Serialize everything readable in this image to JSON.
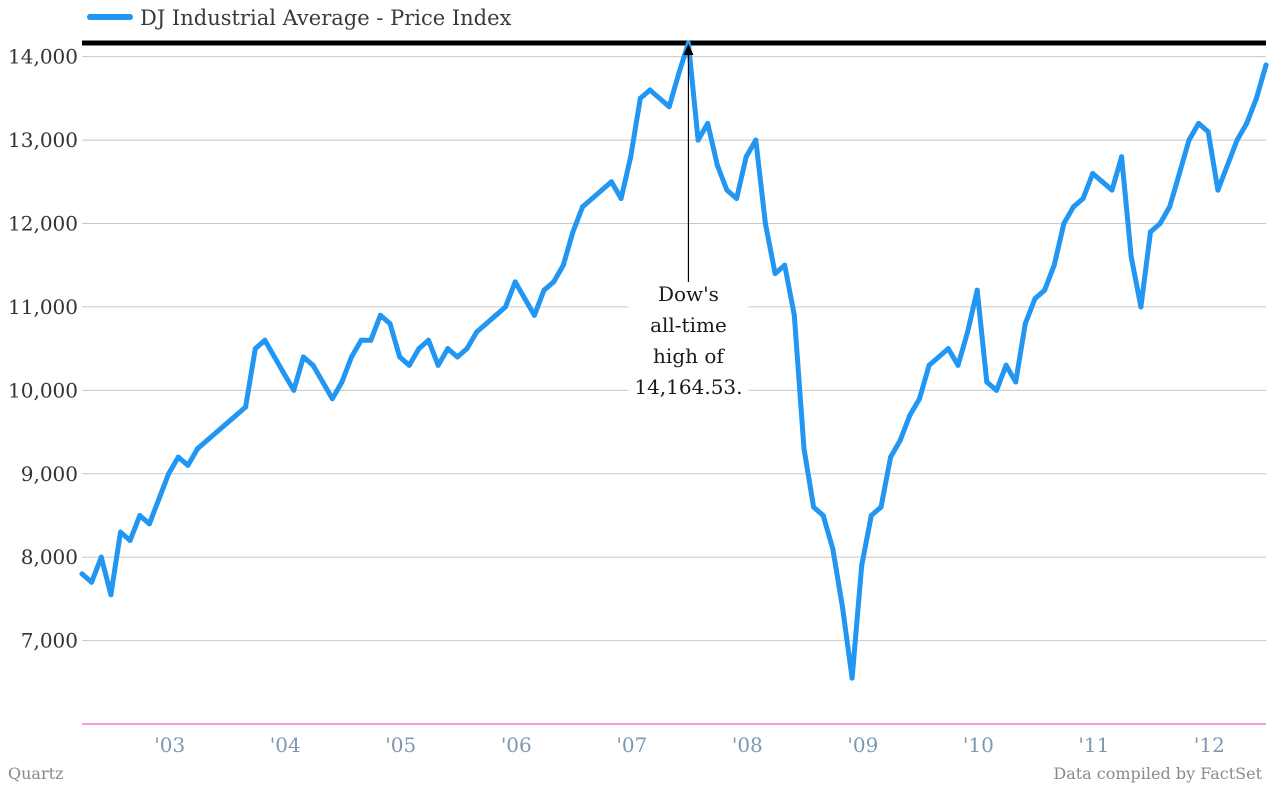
{
  "chart_data": {
    "type": "line",
    "title": "",
    "xlabel": "",
    "ylabel": "",
    "ylim": [
      6000,
      14200
    ],
    "xlim": [
      "2002-07",
      "2012-10"
    ],
    "grid": true,
    "legend_position": "top-left",
    "y_ticks": [
      "7,000",
      "8,000",
      "9,000",
      "10,000",
      "11,000",
      "12,000",
      "13,000",
      "14,000"
    ],
    "y_tick_values": [
      7000,
      8000,
      9000,
      10000,
      11000,
      12000,
      13000,
      14000
    ],
    "x_ticks": [
      "'03",
      "'04",
      "'05",
      "'06",
      "'07",
      "'08",
      "'09",
      "'10",
      "'11",
      "'12"
    ],
    "x_tick_values": [
      "2003-01",
      "2004-01",
      "2005-01",
      "2006-01",
      "2007-01",
      "2008-01",
      "2009-01",
      "2010-01",
      "2011-01",
      "2012-01"
    ],
    "series": [
      {
        "name": "DJ Industrial Average - Price Index",
        "color": "#2196f3",
        "x": [
          "2002-07",
          "2002-08",
          "2002-09",
          "2002-10",
          "2002-11",
          "2002-12",
          "2003-01",
          "2003-02",
          "2003-03",
          "2003-04",
          "2003-05",
          "2003-06",
          "2003-07",
          "2003-08",
          "2003-09",
          "2003-10",
          "2003-11",
          "2003-12",
          "2004-01",
          "2004-02",
          "2004-03",
          "2004-04",
          "2004-05",
          "2004-06",
          "2004-07",
          "2004-08",
          "2004-09",
          "2004-10",
          "2004-11",
          "2004-12",
          "2005-01",
          "2005-02",
          "2005-03",
          "2005-04",
          "2005-05",
          "2005-06",
          "2005-07",
          "2005-08",
          "2005-09",
          "2005-10",
          "2005-11",
          "2005-12",
          "2006-01",
          "2006-02",
          "2006-03",
          "2006-04",
          "2006-05",
          "2006-06",
          "2006-07",
          "2006-08",
          "2006-09",
          "2006-10",
          "2006-11",
          "2006-12",
          "2007-01",
          "2007-02",
          "2007-03",
          "2007-04",
          "2007-05",
          "2007-06",
          "2007-07",
          "2007-08",
          "2007-09",
          "2007-10",
          "2007-11",
          "2007-12",
          "2008-01",
          "2008-02",
          "2008-03",
          "2008-04",
          "2008-05",
          "2008-06",
          "2008-07",
          "2008-08",
          "2008-09",
          "2008-10",
          "2008-11",
          "2008-12",
          "2009-01",
          "2009-02",
          "2009-03",
          "2009-04",
          "2009-05",
          "2009-06",
          "2009-07",
          "2009-08",
          "2009-09",
          "2009-10",
          "2009-11",
          "2009-12",
          "2010-01",
          "2010-02",
          "2010-03",
          "2010-04",
          "2010-05",
          "2010-06",
          "2010-07",
          "2010-08",
          "2010-09",
          "2010-10",
          "2010-11",
          "2010-12",
          "2011-01",
          "2011-02",
          "2011-03",
          "2011-04",
          "2011-05",
          "2011-06",
          "2011-07",
          "2011-08",
          "2011-09",
          "2011-10",
          "2011-11",
          "2011-12",
          "2012-01",
          "2012-02",
          "2012-03",
          "2012-04",
          "2012-05",
          "2012-06",
          "2012-07",
          "2012-08",
          "2012-09",
          "2012-10"
        ],
        "values": [
          7800,
          7700,
          8000,
          7550,
          8300,
          8200,
          8500,
          8400,
          8700,
          9000,
          9200,
          9100,
          9300,
          9400,
          9500,
          9600,
          9700,
          9800,
          10500,
          10600,
          10400,
          10200,
          10000,
          10400,
          10300,
          10100,
          9900,
          10100,
          10400,
          10600,
          10600,
          10900,
          10800,
          10400,
          10300,
          10500,
          10600,
          10300,
          10500,
          10400,
          10500,
          10700,
          10800,
          10900,
          11000,
          11300,
          11100,
          10900,
          11200,
          11300,
          11500,
          11900,
          12200,
          12300,
          12400,
          12500,
          12300,
          12800,
          13500,
          13600,
          13500,
          13400,
          13800,
          14164,
          13000,
          13200,
          12700,
          12400,
          12300,
          12800,
          13000,
          12000,
          11400,
          11500,
          10900,
          9300,
          8600,
          8500,
          8100,
          7400,
          6550,
          7900,
          8500,
          8600,
          9200,
          9400,
          9700,
          9900,
          10300,
          10400,
          10500,
          10300,
          10700,
          11200,
          10100,
          10000,
          10300,
          10100,
          10800,
          11100,
          11200,
          11500,
          12000,
          12200,
          12300,
          12600,
          12500,
          12400,
          12800,
          11600,
          11000,
          11900,
          12000,
          12200,
          12600,
          13000,
          13200,
          13100,
          12400,
          12700,
          13000,
          13200,
          13500,
          13900
        ]
      }
    ],
    "annotations": [
      {
        "text_lines": [
          "Dow's",
          "all-time",
          "high of",
          "14,164.53."
        ],
        "x": "2007-10",
        "y": 14164.53
      }
    ],
    "reference_line": {
      "value": 14164.53,
      "color": "#000000"
    }
  },
  "footer": {
    "left": "Quartz",
    "right": "Data compiled by FactSet"
  }
}
